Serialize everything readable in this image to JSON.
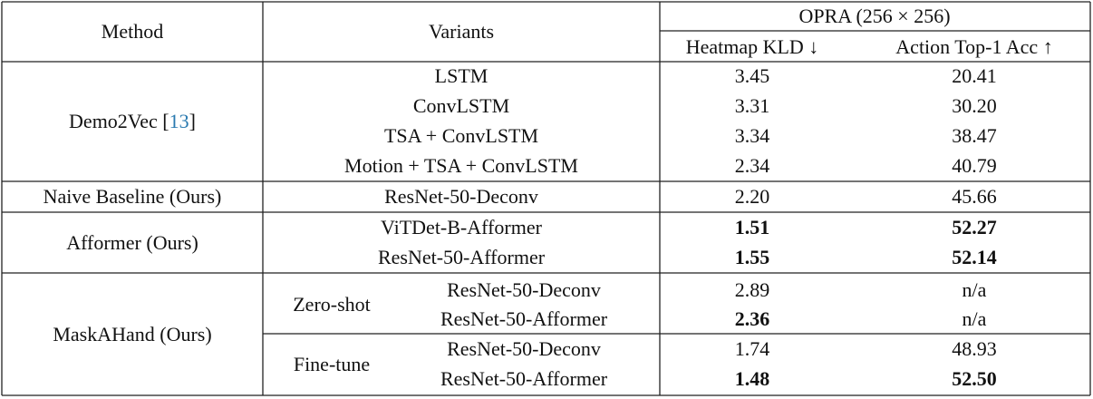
{
  "header": {
    "method": "Method",
    "variants": "Variants",
    "dataset": "OPRA (256 × 256)",
    "metrics": [
      "Heatmap KLD ↓",
      "Action Top-1 Acc ↑"
    ]
  },
  "groups": [
    {
      "method": [
        "Demo2Vec [",
        "13",
        "]"
      ],
      "rows": [
        {
          "variant": "LSTM",
          "kld": "3.45",
          "acc": "20.41"
        },
        {
          "variant": "ConvLSTM",
          "kld": "3.31",
          "acc": "30.20"
        },
        {
          "variant": "TSA + ConvLSTM",
          "kld": "3.34",
          "acc": "38.47"
        },
        {
          "variant": "Motion + TSA + ConvLSTM",
          "kld": "2.34",
          "acc": "40.79"
        }
      ]
    },
    {
      "method": [
        "Naive Baseline (Ours)"
      ],
      "rows": [
        {
          "variant": "ResNet-50-Deconv",
          "kld": "2.20",
          "acc": "45.66"
        }
      ]
    },
    {
      "method": [
        "Afformer (Ours)"
      ],
      "rows": [
        {
          "variant": "ViTDet-B-Afformer",
          "kld": "1.51",
          "acc": "52.27",
          "bold_kld": true,
          "bold_acc": true
        },
        {
          "variant": "ResNet-50-Afformer",
          "kld": "1.55",
          "acc": "52.14",
          "bold_kld": true,
          "bold_acc": true
        }
      ]
    },
    {
      "method": [
        "MaskAHand (Ours)"
      ],
      "settings": [
        {
          "name": "Zero-shot",
          "rows": [
            {
              "variant": "ResNet-50-Deconv",
              "kld": "2.89",
              "acc": "n/a"
            },
            {
              "variant": "ResNet-50-Afformer",
              "kld": "2.36",
              "acc": "n/a",
              "bold_kld": true
            }
          ]
        },
        {
          "name": "Fine-tune",
          "rows": [
            {
              "variant": "ResNet-50-Deconv",
              "kld": "1.74",
              "acc": "48.93"
            },
            {
              "variant": "ResNet-50-Afformer",
              "kld": "1.48",
              "acc": "52.50",
              "bold_kld": true,
              "bold_acc": true
            }
          ]
        }
      ]
    }
  ]
}
